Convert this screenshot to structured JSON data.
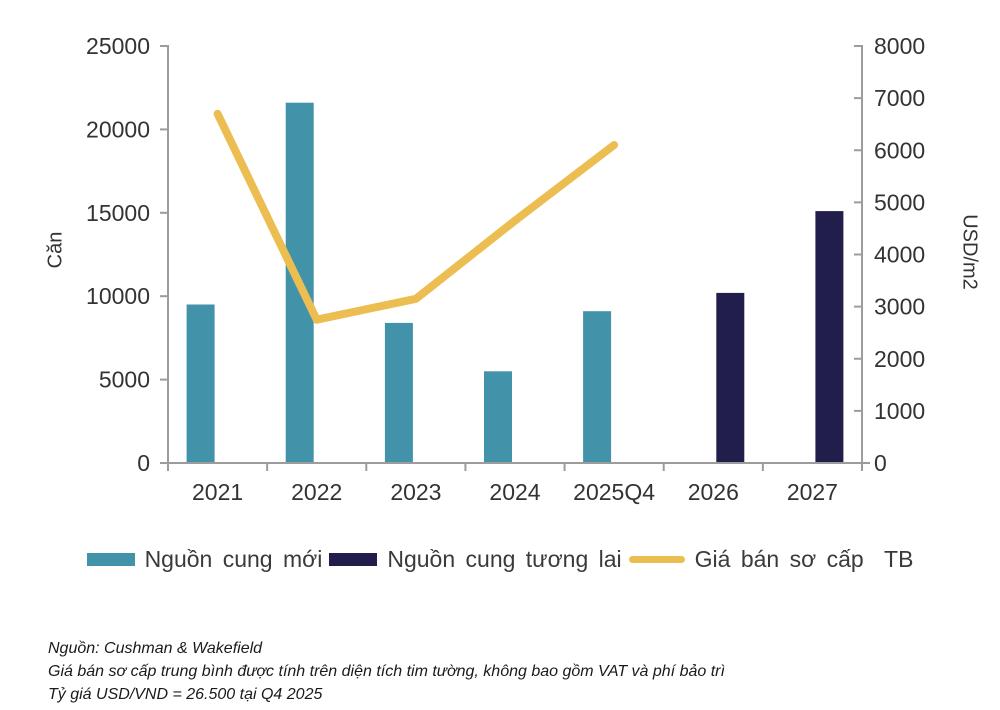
{
  "chart_data": {
    "type": "combo-bar-line",
    "title": "",
    "categories": [
      "2021",
      "2022",
      "2023",
      "2024",
      "2025Q4",
      "2026",
      "2027"
    ],
    "series": [
      {
        "name": "Nguồn cung mới",
        "type": "bar",
        "axis": "left",
        "color": "#4293A9",
        "values": [
          9500,
          21600,
          8400,
          5500,
          9100,
          null,
          null
        ]
      },
      {
        "name": "Nguồn cung tương lai",
        "type": "bar",
        "axis": "left",
        "color": "#221E4B",
        "values": [
          null,
          null,
          null,
          null,
          null,
          10200,
          15100
        ]
      },
      {
        "name": "Giá bán sơ cấp  TB",
        "type": "line",
        "axis": "right",
        "color": "#ECBD51",
        "values": [
          6700,
          2750,
          3150,
          4650,
          6100,
          null,
          null
        ]
      }
    ],
    "ylabel_left": "Căn",
    "ylabel_right": "USD/m2",
    "xlabel": "",
    "ylim_left": [
      0,
      25000
    ],
    "ylim_right": [
      0,
      8000
    ],
    "yticks_left": [
      0,
      5000,
      10000,
      15000,
      20000,
      25000
    ],
    "yticks_right": [
      0,
      1000,
      2000,
      3000,
      4000,
      5000,
      6000,
      7000,
      8000
    ],
    "grid": false,
    "legend_position": "bottom",
    "axis_color": "#9C9C9C",
    "text_color": "#333333"
  },
  "footer": {
    "lines": [
      "Nguồn: Cushman & Wakefield",
      "Giá bán sơ cấp trung bình được tính trên diện tích tim tường, không bao gồm VAT và phí bảo trì",
      "Tỷ giá USD/VND = 26.500 tại Q4 2025"
    ]
  }
}
